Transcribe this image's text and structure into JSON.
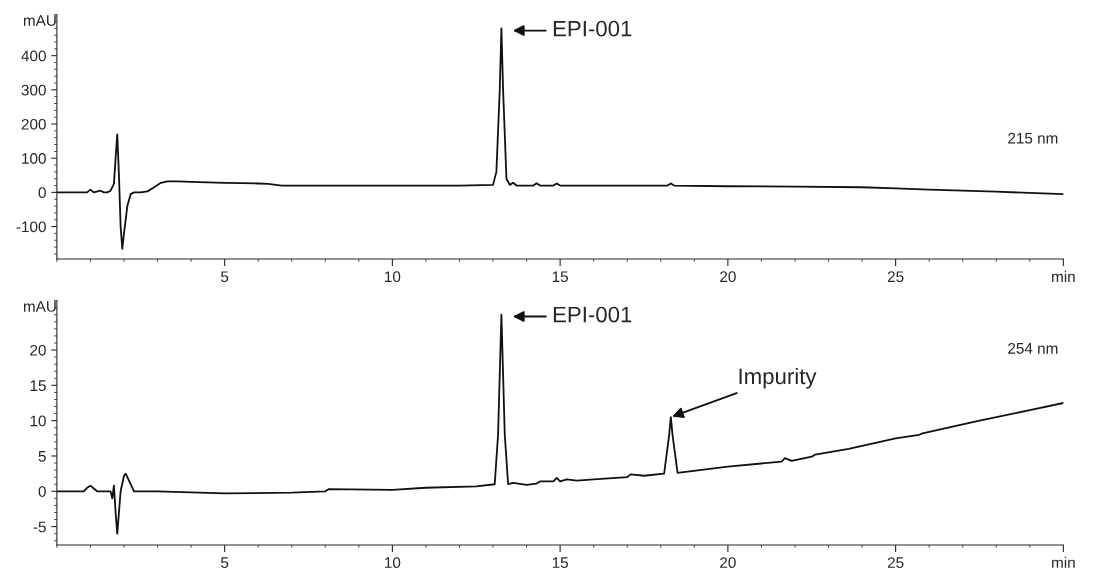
{
  "chart_data": [
    {
      "type": "line",
      "ylabel": "mAU",
      "xlim": [
        0,
        30
      ],
      "xticks": [
        5,
        10,
        15,
        20,
        25,
        {
          "value": 30,
          "label": "min"
        }
      ],
      "ylim": [
        -195,
        520
      ],
      "yticks": [
        -100,
        0,
        100,
        200,
        300,
        400
      ],
      "grid": false,
      "legend": false,
      "marker": "none",
      "line_style": "solid",
      "series": [
        {
          "color": "#111111",
          "x": [
            0,
            0.5,
            0.9,
            1.0,
            1.1,
            1.3,
            1.4,
            1.5,
            1.6,
            1.7,
            1.75,
            1.8,
            1.85,
            1.9,
            1.95,
            2.0,
            2.1,
            2.2,
            2.3,
            2.5,
            2.7,
            2.9,
            3.1,
            3.3,
            3.6,
            4.0,
            5.0,
            6.0,
            6.3,
            6.7,
            7.0,
            8.0,
            10.0,
            12.0,
            13.0,
            13.1,
            13.2,
            13.25,
            13.3,
            13.4,
            13.5,
            13.6,
            13.7,
            14.2,
            14.3,
            14.4,
            14.8,
            14.9,
            15.0,
            16.0,
            18.2,
            18.3,
            18.4,
            20.0,
            22.0,
            24.0,
            25.0,
            26.0,
            28.0,
            30.0
          ],
          "values": [
            0,
            0,
            0,
            8,
            0,
            5,
            0,
            0,
            5,
            25,
            100,
            170,
            50,
            -100,
            -165,
            -120,
            -40,
            -5,
            0,
            0,
            3,
            15,
            28,
            32,
            32,
            31,
            28,
            26,
            25,
            20,
            20,
            20,
            20,
            20,
            22,
            60,
            300,
            480,
            300,
            40,
            22,
            28,
            20,
            20,
            27,
            20,
            20,
            26,
            20,
            20,
            20,
            26,
            20,
            18,
            17,
            15,
            12,
            8,
            2,
            -5
          ]
        }
      ],
      "annotations": [
        "EPI-001",
        "215 nm"
      ]
    },
    {
      "type": "line",
      "ylabel": "mAU",
      "xlim": [
        0,
        30
      ],
      "xticks": [
        5,
        10,
        15,
        20,
        25,
        {
          "value": 30,
          "label": "min"
        }
      ],
      "ylim": [
        -7.6,
        27
      ],
      "yticks": [
        -5,
        0,
        5,
        10,
        15,
        20
      ],
      "grid": false,
      "legend": false,
      "marker": "none",
      "line_style": "solid",
      "series": [
        {
          "color": "#111111",
          "x": [
            0,
            0.8,
            0.9,
            1.0,
            1.1,
            1.2,
            1.6,
            1.65,
            1.7,
            1.75,
            1.8,
            1.9,
            2.0,
            2.05,
            2.15,
            2.3,
            3.0,
            5.0,
            7.0,
            8.0,
            8.1,
            10.0,
            11.0,
            12.5,
            13.05,
            13.15,
            13.25,
            13.35,
            13.45,
            13.6,
            14.0,
            14.3,
            14.4,
            14.8,
            14.9,
            15.0,
            15.2,
            15.5,
            16.0,
            17.0,
            17.1,
            17.5,
            18.1,
            18.25,
            18.3,
            18.35,
            18.5,
            20.0,
            21.6,
            21.7,
            21.9,
            22.5,
            22.6,
            23.6,
            25.0,
            25.7,
            25.8,
            27.5,
            29.0,
            30.0
          ],
          "values": [
            0,
            0,
            0.5,
            0.8,
            0.4,
            0,
            0,
            -1,
            0.8,
            -3,
            -6,
            0,
            2.2,
            2.5,
            1.5,
            0,
            0,
            -0.3,
            -0.2,
            0,
            0.3,
            0.2,
            0.5,
            0.7,
            1,
            8,
            25,
            8,
            1,
            1.2,
            0.9,
            1.1,
            1.4,
            1.4,
            1.9,
            1.4,
            1.7,
            1.5,
            1.7,
            2,
            2.4,
            2.2,
            2.5,
            8,
            10.5,
            8,
            2.6,
            3.5,
            4.2,
            4.7,
            4.3,
            4.9,
            5.2,
            6,
            7.5,
            8,
            8.2,
            10,
            11.5,
            12.5
          ]
        }
      ],
      "annotations": [
        "EPI-001",
        {
          "text": "Impurity",
          "x": 18.3,
          "y": 10.5
        },
        "254 nm"
      ]
    }
  ]
}
